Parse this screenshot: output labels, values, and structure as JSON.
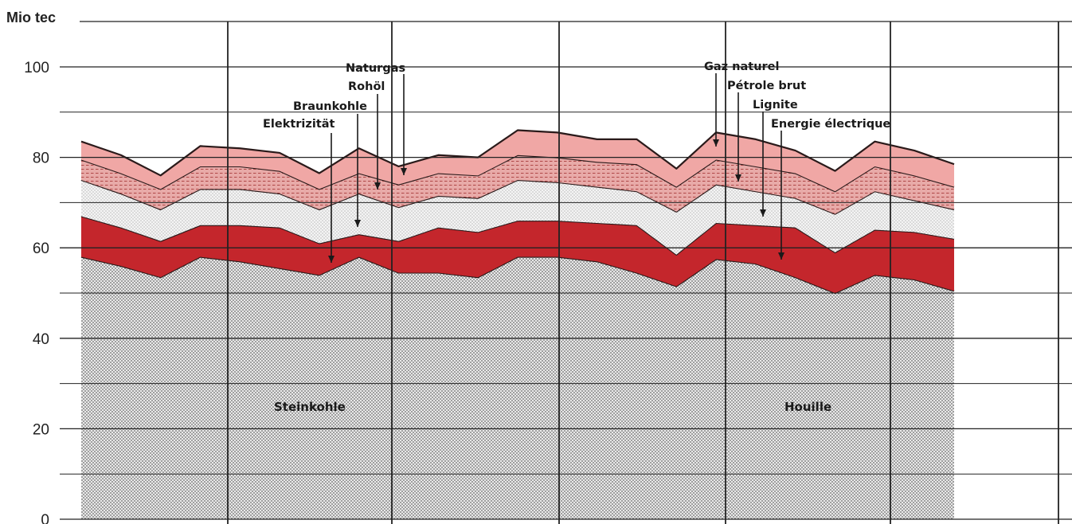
{
  "chart_data": {
    "type": "area",
    "stacked": true,
    "y_unit": "Mio tec",
    "ylim": [
      0,
      100
    ],
    "y_ticks": [
      0,
      20,
      40,
      60,
      80,
      100
    ],
    "grid": true,
    "points": 23,
    "series": [
      {
        "name": "Steinkohle",
        "name_fr": "Houille",
        "color": "#d4d4d4",
        "values": [
          58,
          56,
          53.5,
          58,
          57,
          55.5,
          54,
          58,
          54.5,
          54.5,
          53.5,
          58,
          58,
          57,
          54.5,
          51.5,
          57.5,
          56.5,
          53.5,
          50,
          54,
          53,
          50.5
        ]
      },
      {
        "name": "Elektrizität",
        "name_fr": "Energie électrique",
        "color": "#c4262c",
        "values": [
          9,
          8.5,
          8,
          7,
          8,
          9,
          7,
          5,
          7,
          10,
          10,
          8,
          8,
          8.5,
          10.5,
          7,
          8,
          8.5,
          11,
          9,
          10,
          10.5,
          11.5
        ]
      },
      {
        "name": "Braunkohle",
        "name_fr": "Lignite",
        "color": "#e6e6e6",
        "values": [
          8,
          7.5,
          7,
          8,
          8,
          7.5,
          7.5,
          9,
          7.5,
          7,
          7.5,
          9,
          8.5,
          8,
          7.5,
          9.5,
          8.5,
          7.5,
          6.5,
          8.5,
          8.5,
          7,
          6.5
        ]
      },
      {
        "name": "Rohöl",
        "name_fr": "Pétrole brut",
        "color": "#d98a88",
        "values": [
          4.5,
          4.5,
          4.5,
          5,
          5,
          5,
          4.5,
          4.5,
          5,
          5,
          5,
          5.5,
          5.5,
          5.5,
          6,
          5.5,
          5.5,
          5.5,
          5.5,
          5,
          5.5,
          5.5,
          5
        ]
      },
      {
        "name": "Naturgas",
        "name_fr": "Gaz naturel",
        "color": "#f0a7a5",
        "values": [
          4,
          4,
          3,
          4.5,
          4,
          4,
          3.5,
          5.5,
          4,
          4,
          4,
          5.5,
          5.5,
          5,
          5.5,
          4,
          6,
          6,
          5,
          4.5,
          5.5,
          5.5,
          5
        ]
      }
    ],
    "annotations_de": [
      "Naturgas",
      "Rohöl",
      "Braunkohle",
      "Elektrizität",
      "Steinkohle"
    ],
    "annotations_fr": [
      "Gaz naturel",
      "Pétrole brut",
      "Lignite",
      "Energie électrique",
      "Houille"
    ]
  }
}
